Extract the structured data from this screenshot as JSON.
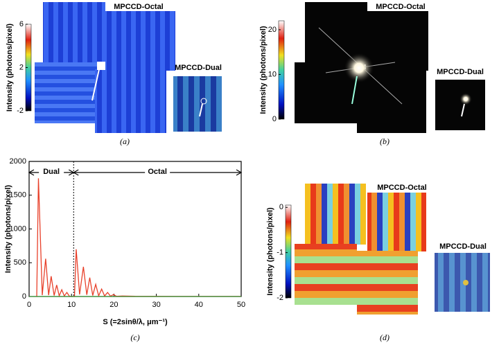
{
  "chart_data": [
    {
      "type": "image",
      "caption": "(a)",
      "colorbar_label": "Intensity (photons/pixel)",
      "clim": [
        -2,
        6
      ],
      "cticks": [
        6,
        2,
        -2
      ],
      "labels": [
        "MPCCD-Octal",
        "MPCCD-Dual"
      ]
    },
    {
      "type": "image",
      "caption": "(b)",
      "colorbar_label": "Intensity (photons/pixel)",
      "clim": [
        0,
        22
      ],
      "cticks": [
        20,
        10,
        0
      ],
      "labels": [
        "MPCCD-Octal",
        "MPCCD-Dual"
      ]
    },
    {
      "type": "line",
      "caption": "(c)",
      "xlabel": "S (=2sinθ/λ, μm⁻¹)",
      "ylabel": "Intensity (photons/pixel)",
      "xlim": [
        0,
        50
      ],
      "ylim": [
        0,
        2000
      ],
      "xticks": [
        0,
        10,
        20,
        30,
        40,
        50
      ],
      "yticks": [
        0,
        500,
        1000,
        1500,
        2000
      ],
      "divider_x": 10.5,
      "regions": [
        {
          "label": "Dual",
          "range": [
            0,
            10.5
          ]
        },
        {
          "label": "Octal",
          "range": [
            10.5,
            50
          ]
        }
      ],
      "series": [
        {
          "color": "#e8402a",
          "x": [
            1.8,
            2.2,
            3.1,
            3.9,
            4.6,
            5.2,
            5.9,
            6.5,
            7.1,
            7.7,
            8.3,
            8.9,
            9.5,
            10.0,
            10.7,
            11.1,
            11.9,
            12.8,
            13.6,
            14.3,
            15.0,
            15.7,
            16.4,
            17.1,
            17.8,
            18.5,
            19.2,
            19.9,
            20.6,
            22,
            25,
            30,
            40,
            50
          ],
          "values": [
            0,
            1750,
            20,
            560,
            20,
            300,
            15,
            170,
            10,
            100,
            8,
            60,
            5,
            0,
            0,
            700,
            30,
            440,
            25,
            280,
            15,
            180,
            10,
            110,
            8,
            60,
            5,
            30,
            3,
            8,
            3,
            2,
            1,
            1
          ]
        },
        {
          "color": "#3a9a3a",
          "x": [
            0,
            50
          ],
          "values": [
            0,
            0
          ]
        }
      ]
    },
    {
      "type": "image",
      "caption": "(d)",
      "colorbar_label": "Intensity (photons/pixel)",
      "clim": [
        -2,
        0.05
      ],
      "cticks": [
        0,
        -1,
        -2
      ],
      "labels": [
        "MPCCD-Octal",
        "MPCCD-Dual"
      ]
    }
  ]
}
